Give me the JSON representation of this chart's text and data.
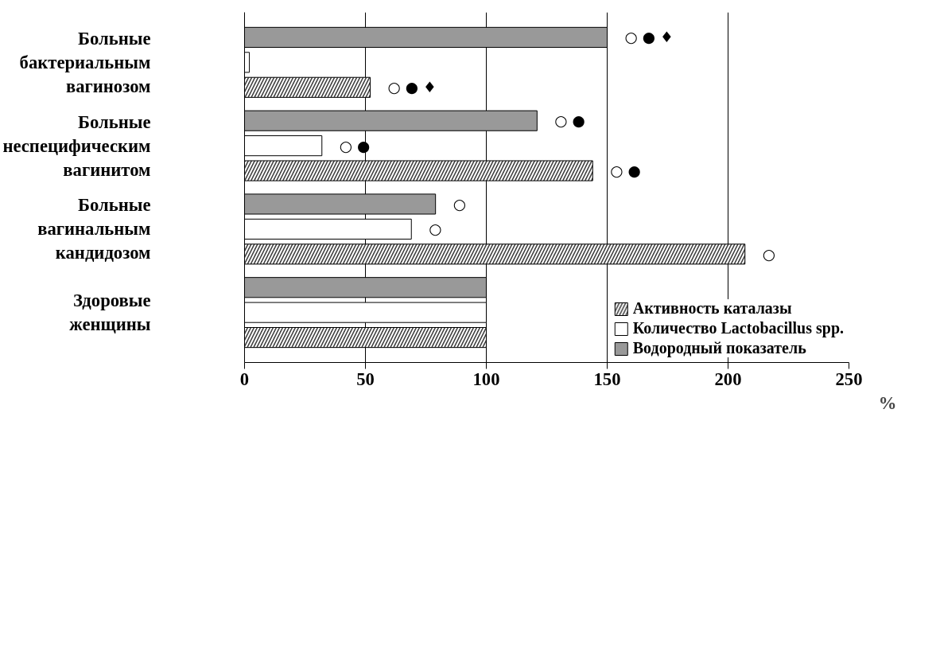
{
  "chart_data": {
    "type": "bar",
    "orientation": "horizontal",
    "xlabel": "%",
    "categories": [
      "Больные бактериальным вагинозом",
      "Больные неспецифическим вагинитом",
      "Больные вагинальным кандидозом",
      "Здоровые женщины"
    ],
    "series": [
      {
        "name": "Активность каталазы",
        "color": "#404040",
        "values": [
          52,
          144,
          207,
          100
        ],
        "value_labels": [
          "○ ● ♦",
          "○ ●",
          "○",
          null
        ]
      },
      {
        "name": "Количество Lactobacillus spp.",
        "color": "#ffffff",
        "values": [
          2,
          32,
          69,
          100
        ],
        "value_labels": [
          null,
          "○ ●",
          "○",
          null
        ]
      },
      {
        "name": "Водородный показатель",
        "color": "#999999",
        "values": [
          150,
          121,
          79,
          100
        ],
        "value_labels": [
          "○ ● ♦",
          "○ ●",
          "○",
          null
        ]
      }
    ],
    "xlim": [
      0,
      250
    ],
    "xticks": [
      0,
      50,
      100,
      150,
      200,
      250
    ],
    "grid": "x",
    "legend": "bottom right"
  }
}
